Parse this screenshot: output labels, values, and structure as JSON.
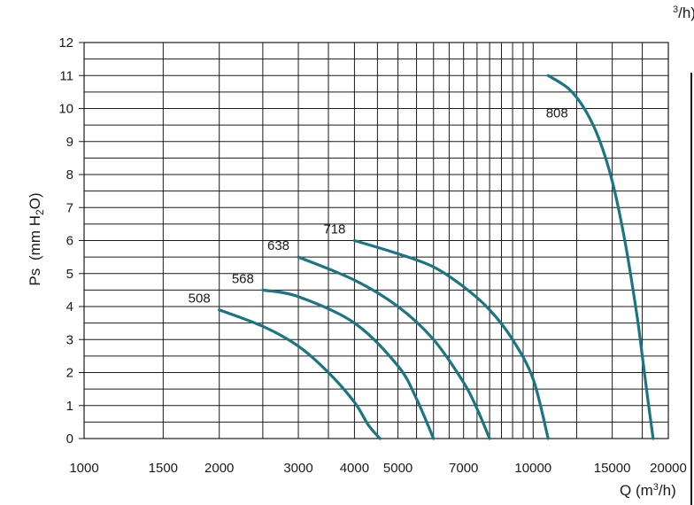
{
  "chart_data": {
    "type": "line",
    "title": "",
    "ylabel": "Ps (mm H2O)",
    "xlabel": "Q (m3/h)",
    "x_scale": "log",
    "xlim": [
      1000,
      20000
    ],
    "ylim": [
      0,
      12
    ],
    "grid": true,
    "legend": "none",
    "x_ticks": [
      1000,
      1500,
      2000,
      3000,
      4000,
      5000,
      7000,
      10000,
      15000,
      20000
    ],
    "x_tick_labels": [
      "1000",
      "1500",
      "2000",
      "3000",
      "4000",
      "5000",
      "7000",
      "10000",
      "15000",
      "20000"
    ],
    "y_ticks": [
      0,
      1,
      2,
      3,
      4,
      5,
      6,
      7,
      8,
      9,
      10,
      11,
      12
    ],
    "y_tick_labels": [
      "0",
      "1",
      "2",
      "3",
      "4",
      "5",
      "6",
      "7",
      "8",
      "9",
      "10",
      "11",
      "12"
    ],
    "series": [
      {
        "name": "508",
        "color": "#1b7583",
        "x": [
          2000,
          2500,
          3000,
          3500,
          4000,
          4300,
          4560
        ],
        "y": [
          3.9,
          3.4,
          2.8,
          2.0,
          1.1,
          0.4,
          0
        ]
      },
      {
        "name": "568",
        "color": "#1b7583",
        "x": [
          2500,
          3000,
          4000,
          5000,
          5500,
          6000
        ],
        "y": [
          4.5,
          4.3,
          3.5,
          2.2,
          1.2,
          0
        ]
      },
      {
        "name": "638",
        "color": "#1b7583",
        "x": [
          3000,
          4000,
          5000,
          6000,
          7000,
          7500,
          8000
        ],
        "y": [
          5.5,
          4.8,
          4.0,
          3.0,
          1.7,
          0.9,
          0
        ]
      },
      {
        "name": "718",
        "color": "#1b7583",
        "x": [
          4000,
          5000,
          6000,
          7000,
          8000,
          9000,
          10000,
          10800
        ],
        "y": [
          6.0,
          5.6,
          5.2,
          4.6,
          3.9,
          3.0,
          1.8,
          0
        ]
      },
      {
        "name": "808",
        "color": "#1b7583",
        "x": [
          10800,
          12000,
          13000,
          14000,
          15000,
          16000,
          17000,
          17500,
          18000,
          18500
        ],
        "y": [
          11.0,
          10.6,
          10.0,
          9.1,
          7.8,
          6.0,
          3.8,
          2.5,
          1.2,
          0
        ]
      }
    ],
    "series_label_anchor": [
      "start",
      "start",
      "start",
      "start",
      "start"
    ]
  },
  "axes": {
    "ylabel_main": "Ps",
    "ylabel_unit": "(mm H",
    "ylabel_sub": "2",
    "ylabel_end": "O)",
    "xlabel_main": "Q (m",
    "xlabel_sup": "3",
    "xlabel_end": "/h)",
    "corner_fragment_sup": "3",
    "corner_fragment_end": "/h)"
  }
}
